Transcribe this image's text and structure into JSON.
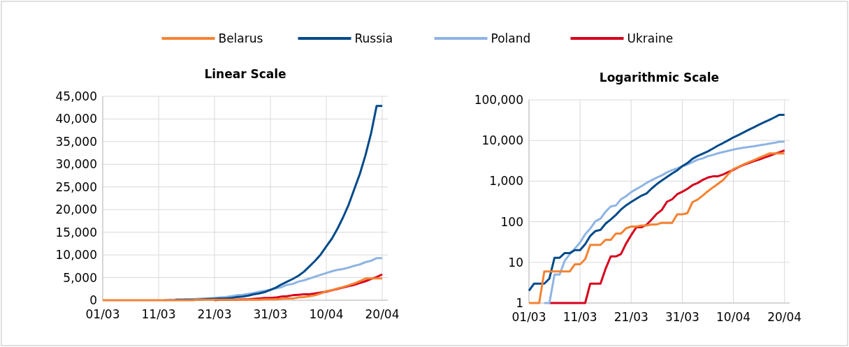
{
  "chart_data": [
    {
      "type": "line",
      "title": "Linear Scale",
      "legend": "top",
      "grid": true,
      "line_style": "solid",
      "marker": "none",
      "x": [
        "--03-01",
        "--03-02",
        "--03-03",
        "--03-04",
        "--03-05",
        "--03-06",
        "--03-07",
        "--03-08",
        "--03-09",
        "--03-10",
        "--03-11",
        "--03-12",
        "--03-13",
        "--03-14",
        "--03-15",
        "--03-16",
        "--03-17",
        "--03-18",
        "--03-19",
        "--03-20",
        "--03-21",
        "--03-22",
        "--03-23",
        "--03-24",
        "--03-25",
        "--03-26",
        "--03-27",
        "--03-28",
        "--03-29",
        "--03-30",
        "--03-31",
        "--04-01",
        "--04-02",
        "--04-03",
        "--04-04",
        "--04-05",
        "--04-06",
        "--04-07",
        "--04-08",
        "--04-09",
        "--04-10",
        "--04-11",
        "--04-12",
        "--04-13",
        "--04-14",
        "--04-15",
        "--04-16",
        "--04-17",
        "--04-18",
        "--04-19",
        "--04-20"
      ],
      "xlim": [
        "--03-01",
        "--04-21"
      ],
      "xticks": [
        {
          "value": "--03-01",
          "label": "01/03"
        },
        {
          "value": "--03-11",
          "label": "11/03"
        },
        {
          "value": "--03-21",
          "label": "21/03"
        },
        {
          "value": "--03-31",
          "label": "31/03"
        },
        {
          "value": "--04-10",
          "label": "10/04"
        },
        {
          "value": "--04-20",
          "label": "20/04"
        }
      ],
      "ylim": [
        0,
        45000
      ],
      "yticks": [
        {
          "value": 0,
          "label": "0"
        },
        {
          "value": 5000,
          "label": "5,000"
        },
        {
          "value": 10000,
          "label": "10,000"
        },
        {
          "value": 15000,
          "label": "15,000"
        },
        {
          "value": 20000,
          "label": "20,000"
        },
        {
          "value": 25000,
          "label": "25,000"
        },
        {
          "value": 30000,
          "label": "30,000"
        },
        {
          "value": 35000,
          "label": "35,000"
        },
        {
          "value": 40000,
          "label": "40,000"
        },
        {
          "value": 45000,
          "label": "45,000"
        }
      ],
      "series": [
        {
          "name": "Belarus",
          "color": "#f58232",
          "values": [
            0,
            0,
            0,
            0,
            0,
            0,
            0,
            0,
            0,
            0,
            0,
            0,
            0,
            0,
            0,
            0,
            0,
            100,
            100,
            100,
            100,
            100,
            100,
            100,
            100,
            100,
            100,
            100,
            100,
            200,
            200,
            200,
            300,
            400,
            400,
            600,
            700,
            900,
            1100,
            1500,
            2000,
            2200,
            2600,
            2900,
            3300,
            3700,
            4200,
            4800,
            4800,
            4800,
            4800
          ]
        },
        {
          "name": "Russia",
          "color": "#004a8a",
          "values": [
            null,
            null,
            null,
            null,
            null,
            null,
            null,
            null,
            null,
            null,
            null,
            null,
            null,
            100,
            100,
            100,
            100,
            100,
            200,
            300,
            300,
            400,
            400,
            500,
            700,
            800,
            1000,
            1300,
            1500,
            1800,
            2300,
            2800,
            3500,
            4100,
            4700,
            5400,
            6300,
            7500,
            8700,
            10100,
            11900,
            13600,
            15800,
            18300,
            21100,
            24500,
            27900,
            32000,
            36800,
            42900,
            42900
          ]
        },
        {
          "name": "Poland",
          "color": "#8eb4e3",
          "values": [
            null,
            null,
            null,
            null,
            null,
            null,
            null,
            null,
            null,
            null,
            null,
            0,
            100,
            100,
            100,
            200,
            200,
            300,
            400,
            400,
            500,
            600,
            700,
            900,
            1100,
            1200,
            1400,
            1600,
            1900,
            2100,
            2300,
            2600,
            2900,
            3400,
            3600,
            4100,
            4400,
            4800,
            5200,
            5600,
            6000,
            6400,
            6700,
            6900,
            7200,
            7600,
            7900,
            8400,
            8700,
            9300,
            9300
          ]
        },
        {
          "name": "Ukraine",
          "color": "#d7001c",
          "values": [
            null,
            null,
            null,
            null,
            null,
            null,
            null,
            null,
            null,
            null,
            null,
            null,
            null,
            null,
            null,
            null,
            null,
            null,
            null,
            null,
            0,
            100,
            100,
            100,
            100,
            200,
            200,
            300,
            400,
            500,
            500,
            600,
            800,
            900,
            1100,
            1200,
            1300,
            1300,
            1500,
            1700,
            1900,
            2200,
            2500,
            2800,
            3100,
            3400,
            3800,
            4200,
            4700,
            5100,
            5700
          ]
        }
      ]
    },
    {
      "type": "line",
      "title": "Logarithmic Scale",
      "log": "y",
      "grid": true,
      "line_style": "solid",
      "marker": "none",
      "x": [
        "--03-01",
        "--03-02",
        "--03-03",
        "--03-04",
        "--03-05",
        "--03-06",
        "--03-07",
        "--03-08",
        "--03-09",
        "--03-10",
        "--03-11",
        "--03-12",
        "--03-13",
        "--03-14",
        "--03-15",
        "--03-16",
        "--03-17",
        "--03-18",
        "--03-19",
        "--03-20",
        "--03-21",
        "--03-22",
        "--03-23",
        "--03-24",
        "--03-25",
        "--03-26",
        "--03-27",
        "--03-28",
        "--03-29",
        "--03-30",
        "--03-31",
        "--04-01",
        "--04-02",
        "--04-03",
        "--04-04",
        "--04-05",
        "--04-06",
        "--04-07",
        "--04-08",
        "--04-09",
        "--04-10",
        "--04-11",
        "--04-12",
        "--04-13",
        "--04-14",
        "--04-15",
        "--04-16",
        "--04-17",
        "--04-18",
        "--04-19",
        "--04-20"
      ],
      "xlim": [
        "--03-01",
        "--04-21"
      ],
      "xticks": [
        {
          "value": "--03-01",
          "label": "01/03"
        },
        {
          "value": "--03-11",
          "label": "11/03"
        },
        {
          "value": "--03-21",
          "label": "21/03"
        },
        {
          "value": "--03-31",
          "label": "31/03"
        },
        {
          "value": "--04-10",
          "label": "10/04"
        },
        {
          "value": "--04-20",
          "label": "20/04"
        }
      ],
      "ylim": [
        1,
        100000
      ],
      "yticks": [
        {
          "value": 1,
          "label": "1"
        },
        {
          "value": 10,
          "label": "10"
        },
        {
          "value": 100,
          "label": "100"
        },
        {
          "value": 1000,
          "label": "1,000"
        },
        {
          "value": 10000,
          "label": "10,000"
        },
        {
          "value": 100000,
          "label": "100,000"
        }
      ],
      "series": [
        {
          "color": "#f58232",
          "values": [
            1,
            1,
            1,
            6,
            6,
            6,
            6,
            6,
            6,
            9,
            9,
            12,
            27,
            27,
            27,
            36,
            36,
            51,
            51,
            69,
            76,
            76,
            81,
            81,
            86,
            86,
            94,
            94,
            94,
            152,
            152,
            163,
            304,
            351,
            440,
            562,
            700,
            861,
            1066,
            1486,
            1981,
            2226,
            2578,
            2919,
            3281,
            3728,
            4204,
            4779,
            4779,
            4779,
            4779
          ]
        },
        {
          "color": "#004a8a",
          "values": [
            2,
            3,
            3,
            3,
            4,
            13,
            13,
            17,
            17,
            20,
            20,
            28,
            45,
            59,
            63,
            90,
            114,
            147,
            199,
            253,
            306,
            367,
            438,
            495,
            658,
            840,
            1036,
            1264,
            1534,
            1836,
            2337,
            2777,
            3548,
            4149,
            4731,
            5389,
            6343,
            7497,
            8672,
            10131,
            11917,
            13584,
            15770,
            18328,
            21102,
            24490,
            27938,
            32008,
            36793,
            42853,
            42853
          ]
        },
        {
          "color": "#8eb4e3",
          "values": [
            null,
            null,
            null,
            1,
            1,
            5,
            5,
            11,
            16,
            22,
            31,
            49,
            68,
            103,
            119,
            177,
            238,
            251,
            355,
            425,
            536,
            634,
            749,
            901,
            1051,
            1221,
            1389,
            1638,
            1862,
            2055,
            2311,
            2554,
            2946,
            3383,
            3627,
            4102,
            4413,
            4848,
            5205,
            5575,
            5955,
            6356,
            6674,
            6934,
            7202,
            7582,
            7918,
            8379,
            8742,
            9287,
            9287
          ]
        },
        {
          "color": "#d7001c",
          "values": [
            null,
            null,
            null,
            null,
            1,
            1,
            1,
            1,
            1,
            1,
            1,
            1,
            3,
            3,
            3,
            7,
            14,
            14,
            16,
            29,
            47,
            73,
            73,
            84,
            113,
            156,
            196,
            310,
            356,
            475,
            548,
            645,
            794,
            897,
            1072,
            1225,
            1308,
            1319,
            1462,
            1668,
            1892,
            2203,
            2511,
            2777,
            3102,
            3372,
            3764,
            4161,
            4662,
            5106,
            5710
          ]
        }
      ]
    }
  ]
}
